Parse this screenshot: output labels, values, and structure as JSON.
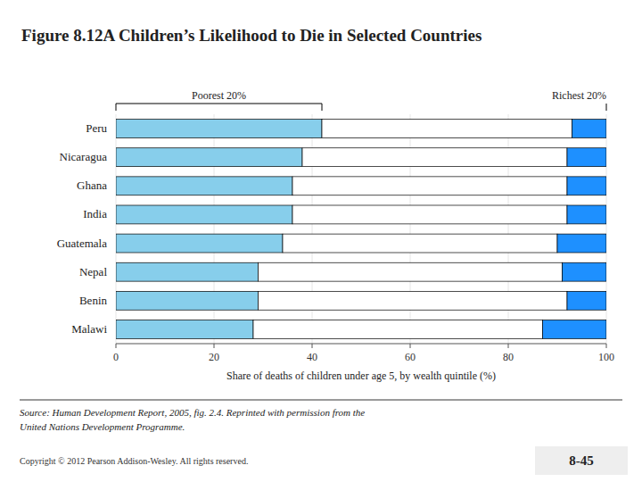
{
  "chart_data": {
    "type": "bar",
    "orientation": "horizontal",
    "stacked": true,
    "title": "Figure 8.12A Children’s Likelihood to Die in Selected Countries",
    "x_label": "Share of deaths of children under age 5, by wealth quintile (%)",
    "categories": [
      "Peru",
      "Nicaragua",
      "Ghana",
      "India",
      "Guatemala",
      "Nepal",
      "Benin",
      "Malawi"
    ],
    "series": [
      {
        "name": "Poorest 20%",
        "color": "#87CEEB",
        "values": [
          42,
          38,
          36,
          36,
          34,
          29,
          29,
          28
        ]
      },
      {
        "color": "#FFFFFF",
        "values": [
          51,
          54,
          56,
          56,
          56,
          62,
          63,
          59
        ]
      },
      {
        "name": "Richest 20%",
        "color": "#1E90FF",
        "values": [
          7,
          8,
          8,
          8,
          10,
          9,
          8,
          13
        ]
      }
    ],
    "xlim": [
      0,
      100
    ],
    "xticks": [
      0,
      20,
      40,
      60,
      80,
      100
    ],
    "annotations": [
      "Source: Human Development Report, 2005, fig. 2.4. Reprinted with permission from the",
      "United Nations Development Programme.",
      "Copyright © 2012 Pearson Addison-Wesley. All rights reserved.",
      "8-45"
    ]
  }
}
